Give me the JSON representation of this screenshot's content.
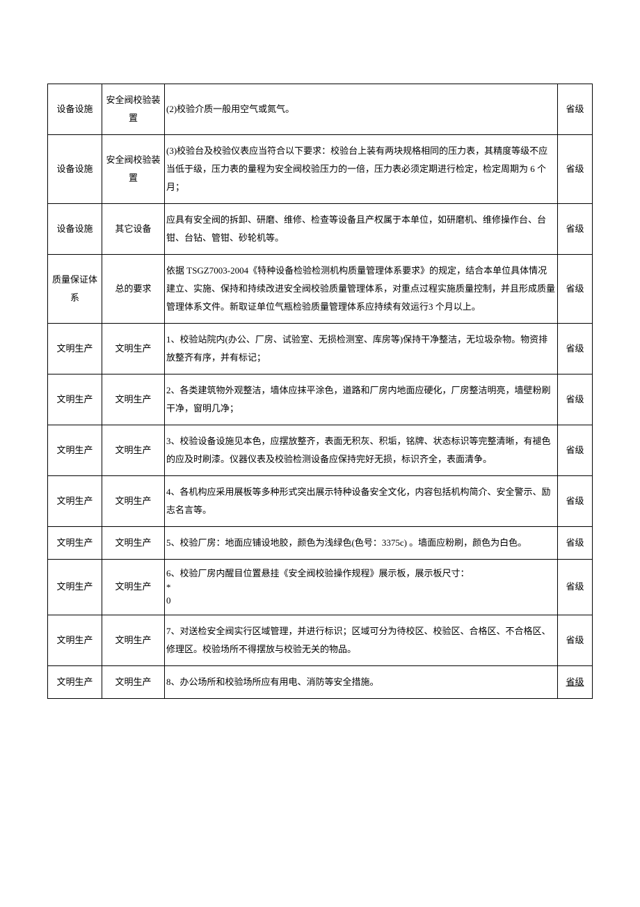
{
  "table": {
    "columns": {
      "col1_width": 78,
      "col2_width": 90,
      "col4_width": 50
    },
    "styling": {
      "border_color": "#000000",
      "font_size": 13,
      "line_height": 2.0,
      "font_family": "SimSun",
      "text_color": "#000000",
      "background_color": "#ffffff"
    },
    "rows": [
      {
        "c1": "设备设施",
        "c2": "安全阀校验装置",
        "c3": "(2)校验介质一般用空气或氮气。",
        "c4": "省级"
      },
      {
        "c1": "设备设施",
        "c2": "安全阀校验装置",
        "c3": "  (3)校验台及校验仪表应当符合以下要求：校验台上装有两块规格相同的压力表，其精度等级不应当低于级，压力表的量程为安全阀校验压力的一倍，压力表必须定期进行检定，检定周期为 6 个月；",
        "c4": "省级"
      },
      {
        "c1": "设备设施",
        "c2": "其它设备",
        "c3": "应具有安全阀的拆卸、研磨、维修、检查等设备且产权属于本单位，如研磨机、维修操作台、台钳、台钻、管钳、砂轮机等。",
        "c4": "省级"
      },
      {
        "c1": "质量保证体系",
        "c2": "总的要求",
        "c3": "依据 TSGZ7003-2004《特种设备检验检测机构质量管理体系要求》的规定，结合本单位具体情况建立、实施、保持和持续改进安全阀校验质量管理体系，对重点过程实施质量控制，并且形成质量管理体系文件。新取证单位气瓶检验质量管理体系应持续有效运行3 个月以上。",
        "c4": "省级"
      },
      {
        "c1": "文明生产",
        "c2": "文明生产",
        "c3": "1、校验站院内(办公、厂房、试验室、无损检测室、库房等)保持干净整洁，无垃圾杂物。物资排放整齐有序，并有标记；",
        "c4": "省级"
      },
      {
        "c1": "文明生产",
        "c2": "文明生产",
        "c3": "2、各类建筑物外观整洁，墙体应抹平涂色，道路和厂房内地面应硬化，厂房整洁明亮，墙壁粉刷干净，窗明几净；",
        "c4": "省级"
      },
      {
        "c1": "文明生产",
        "c2": "文明生产",
        "c3": "3、校验设备设施见本色，应摆放整齐，表面无积灰、积垢，铭牌、状态标识等完整清晰，有褪色的应及时刷漆。仪器仪表及校验检测设备应保持完好无损，标识齐全，表面清争。",
        "c4": "省级"
      },
      {
        "c1": "文明生产",
        "c2": "文明生产",
        "c3": "4、各机构应采用展板等多种形式突出展示特种设备安全文化，内容包括机构简介、安全警示、励志名言等。",
        "c4": "省级"
      },
      {
        "c1": "文明生产",
        "c2": "文明生产",
        "c3": "5、校验厂房：地面应铺设地胶，颜色为浅绿色(色号：3375c)  。墙面应粉刷，颜色为白色。",
        "c4": "省级"
      },
      {
        "c1": "文明生产",
        "c2": "文明生产",
        "c3": "6、校验厂房内醒目位置悬挂《安全阀校验操作规程》展示板，展示板尺寸：\n*\n  0",
        "c4": "省级"
      },
      {
        "c1": "文明生产",
        "c2": "文明生产",
        "c3": "7、对送检安全阀实行区域管理，并进行标识；区域可分为待校区、校验区、合格区、不合格区、修理区。校验场所不得摆放与校验无关的物品。",
        "c4": "省级"
      },
      {
        "c1": "文明生产",
        "c2": "文明生产",
        "c3": "8、办公场所和校验场所应有用电、消防等安全措施。",
        "c4": "省级",
        "c4_underlined": true
      }
    ]
  }
}
